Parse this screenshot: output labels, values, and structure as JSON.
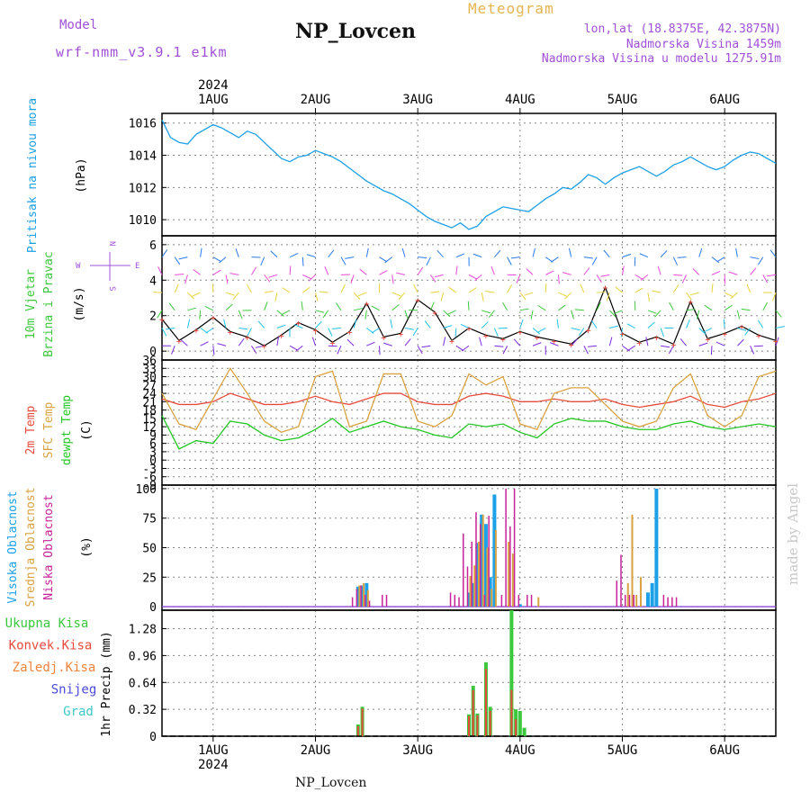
{
  "header": {
    "model_label": "Model",
    "model_name": "wrf-nmm_v3.9.1 e1km",
    "station": "NP_Lovcen",
    "product": "Meteogram",
    "lonlat": "lon,lat (18.8375E, 42.3875N)",
    "elev": "Nadmorska Visina 1459m",
    "elev_model": "Nadmorska Visina u modelu 1275.91m",
    "watermark": "made by Angel",
    "footer_station": "NP_Lovcen"
  },
  "time_axis": {
    "year": "2024",
    "start": "2024-07-31T12:00",
    "end": "2024-08-06T12:00",
    "day_labels": [
      "1AUG",
      "2AUG",
      "3AUG",
      "4AUG",
      "5AUG",
      "6AUG"
    ]
  },
  "colors": {
    "pressure": "#1ca0e8",
    "temp_2m": "#e84a3c",
    "temp_sfc": "#d9a240",
    "dewpoint": "#22c722",
    "cloud_high": "#1ca0e8",
    "cloud_mid": "#d9a240",
    "cloud_low": "#c8239a",
    "precip_total": "#3cc83c",
    "precip_conv": "#e84a3c",
    "precip_frozen": "#f0843c",
    "snow": "#4a4adc",
    "graupel": "#3cc8c8",
    "model_label": "#a050d8",
    "meteogram_label": "#e6b450"
  },
  "chart_data": [
    {
      "type": "line",
      "panel": "pressure",
      "ylabel_name": "Pritisak na nivou mora",
      "ylabel_unit": "(hPa)",
      "ylim": [
        1009,
        1016.6
      ],
      "yticks": [
        1010,
        1012,
        1014,
        1016
      ],
      "grid": true,
      "series": [
        {
          "name": "Pritisak na nivou mora",
          "x_hours": [
            0,
            2,
            4,
            6,
            8,
            10,
            12,
            14,
            16,
            18,
            20,
            22,
            24,
            26,
            28,
            30,
            32,
            34,
            36,
            38,
            40,
            42,
            44,
            46,
            48,
            50,
            52,
            54,
            56,
            58,
            60,
            62,
            64,
            66,
            68,
            70,
            72,
            74,
            76,
            78,
            80,
            82,
            84,
            86,
            88,
            90,
            92,
            94,
            96,
            98,
            100,
            102,
            104,
            106,
            108,
            110,
            112,
            114,
            116,
            118,
            120,
            122,
            124,
            126,
            128,
            130,
            132,
            134,
            136,
            138,
            140,
            142,
            144
          ],
          "values": [
            1016.2,
            1015.1,
            1014.8,
            1014.7,
            1015.3,
            1015.6,
            1015.9,
            1015.7,
            1015.4,
            1015.1,
            1015.5,
            1015.3,
            1014.8,
            1014.3,
            1013.8,
            1013.6,
            1013.9,
            1014.0,
            1014.3,
            1014.1,
            1013.9,
            1013.6,
            1013.2,
            1012.8,
            1012.4,
            1012.1,
            1011.8,
            1011.6,
            1011.3,
            1011.0,
            1010.6,
            1010.2,
            1009.9,
            1009.7,
            1009.5,
            1009.8,
            1009.4,
            1009.6,
            1010.2,
            1010.5,
            1010.8,
            1010.7,
            1010.6,
            1010.5,
            1010.9,
            1011.3,
            1011.6,
            1012.0,
            1011.9,
            1012.3,
            1012.8,
            1012.6,
            1012.2,
            1012.6,
            1012.9,
            1013.1,
            1013.3,
            1013.0,
            1012.7,
            1013.0,
            1013.4,
            1013.6,
            1013.9,
            1013.6,
            1013.3,
            1013.1,
            1013.3,
            1013.7,
            1014.0,
            1014.2,
            1014.1,
            1013.8,
            1013.5
          ]
        }
      ]
    },
    {
      "type": "barbs",
      "panel": "wind",
      "ylabel_name": "10m Vjetar",
      "ylabel_name2": "Brzina i Pravac",
      "ylabel_unit": "(m/s)",
      "compass": {
        "n": "N",
        "s": "S",
        "e": "E",
        "w": "W"
      },
      "ylim": [
        -0.5,
        6.5
      ],
      "yticks": [
        0,
        2,
        4,
        6
      ],
      "grid": true,
      "series": [
        {
          "name": "Brzina",
          "x_hours": [
            0,
            4,
            8,
            12,
            16,
            20,
            24,
            28,
            32,
            36,
            40,
            44,
            48,
            52,
            56,
            60,
            64,
            68,
            72,
            76,
            80,
            84,
            88,
            92,
            96,
            100,
            104,
            108,
            112,
            116,
            120,
            124,
            128,
            132,
            136,
            140,
            144
          ],
          "values": [
            1.8,
            0.6,
            1.2,
            1.9,
            1.1,
            0.8,
            0.3,
            0.9,
            1.6,
            1.2,
            0.5,
            1.1,
            2.7,
            0.8,
            1.0,
            2.9,
            2.2,
            0.6,
            1.3,
            0.9,
            0.7,
            1.1,
            0.8,
            0.6,
            0.4,
            1.2,
            3.6,
            1.0,
            0.5,
            0.8,
            0.4,
            2.8,
            0.7,
            1.0,
            1.4,
            0.9,
            0.6
          ]
        }
      ]
    },
    {
      "type": "line",
      "panel": "temperature",
      "ylabel_name": "2m Temp",
      "ylabel_name2": "SFC Temp",
      "ylabel_name3": "dewpt Temp",
      "ylabel_unit": "(C)",
      "ylim": [
        -9,
        36
      ],
      "yticks": [
        -9,
        -6,
        -3,
        0,
        3,
        6,
        9,
        12,
        15,
        18,
        21,
        24,
        27,
        30,
        33,
        36
      ],
      "grid": true,
      "series": [
        {
          "name": "2m Temp",
          "x_hours": [
            0,
            4,
            8,
            12,
            16,
            20,
            24,
            28,
            32,
            36,
            40,
            44,
            48,
            52,
            56,
            60,
            64,
            68,
            72,
            76,
            80,
            84,
            88,
            92,
            96,
            100,
            104,
            108,
            112,
            116,
            120,
            124,
            128,
            132,
            136,
            140,
            144
          ],
          "values": [
            22,
            20,
            20,
            21,
            24,
            22,
            20,
            20,
            21,
            23,
            21,
            20,
            22,
            24,
            24,
            21,
            20,
            20,
            23,
            24,
            23,
            21,
            21,
            22,
            21,
            21,
            22,
            20,
            19,
            20,
            21,
            23,
            20,
            19,
            21,
            22,
            24
          ]
        },
        {
          "name": "SFC Temp",
          "x_hours": [
            0,
            4,
            8,
            12,
            16,
            20,
            24,
            28,
            32,
            36,
            40,
            44,
            48,
            52,
            56,
            60,
            64,
            68,
            72,
            76,
            80,
            84,
            88,
            92,
            96,
            100,
            104,
            108,
            112,
            116,
            120,
            124,
            128,
            132,
            136,
            140,
            144
          ],
          "values": [
            24,
            13,
            11,
            22,
            33,
            24,
            14,
            10,
            12,
            30,
            32,
            12,
            14,
            31,
            31,
            14,
            12,
            16,
            31,
            27,
            30,
            13,
            11,
            24,
            26,
            26,
            20,
            14,
            12,
            14,
            26,
            31,
            16,
            12,
            16,
            30,
            32
          ]
        },
        {
          "name": "dewpt Temp",
          "x_hours": [
            0,
            4,
            8,
            12,
            16,
            20,
            24,
            28,
            32,
            36,
            40,
            44,
            48,
            52,
            56,
            60,
            64,
            68,
            72,
            76,
            80,
            84,
            88,
            92,
            96,
            100,
            104,
            108,
            112,
            116,
            120,
            124,
            128,
            132,
            136,
            140,
            144
          ],
          "values": [
            16,
            4,
            7,
            6,
            14,
            13,
            9,
            7,
            8,
            11,
            15,
            10,
            12,
            14,
            12,
            11,
            9,
            8,
            13,
            12,
            13,
            10,
            8,
            13,
            15,
            14,
            14,
            12,
            11,
            11,
            13,
            14,
            12,
            11,
            12,
            13,
            12
          ]
        }
      ]
    },
    {
      "type": "bar",
      "panel": "clouds",
      "ylabel_name": "Visoka Oblacnost",
      "ylabel_name2": "Srednja Oblacnost",
      "ylabel_name3": "Niska Oblacnost",
      "ylabel_unit": "(%)",
      "ylim": [
        -3,
        103
      ],
      "yticks": [
        0,
        25,
        50,
        75,
        100
      ],
      "grid": true,
      "series": [
        {
          "name": "Visoka Oblacnost",
          "x_hours": [
            46,
            47,
            48,
            72,
            73,
            74,
            75,
            76,
            77,
            78,
            84,
            114,
            115,
            116
          ],
          "values": [
            17,
            18,
            20,
            12,
            20,
            54,
            78,
            70,
            25,
            95,
            2,
            12,
            20,
            100
          ]
        },
        {
          "name": "Srednja Oblacnost",
          "x_hours": [
            46,
            47,
            48,
            72,
            73,
            74,
            75,
            76,
            77,
            78,
            81,
            82,
            88,
            109,
            110,
            111,
            112
          ],
          "values": [
            18,
            20,
            14,
            26,
            35,
            55,
            78,
            50,
            15,
            65,
            55,
            45,
            8,
            20,
            78,
            10,
            25
          ]
        },
        {
          "name": "Niska Oblacnost",
          "x_hours": [
            45,
            46,
            47,
            48,
            49,
            52,
            53,
            68,
            69,
            70,
            71,
            72,
            73,
            74,
            75,
            76,
            77,
            80,
            81,
            82,
            83,
            84,
            86,
            87,
            107,
            108,
            109,
            110,
            111,
            118,
            119,
            120,
            121
          ],
          "values": [
            8,
            15,
            18,
            10,
            5,
            10,
            10,
            12,
            10,
            8,
            62,
            34,
            55,
            80,
            70,
            10,
            77,
            10,
            100,
            68,
            100,
            10,
            10,
            10,
            22,
            44,
            10,
            10,
            10,
            10,
            8,
            8,
            8
          ]
        }
      ]
    },
    {
      "type": "bar",
      "panel": "precipitation",
      "ylabel_name": "1hr Precip",
      "ylabel_unit": "(mm)",
      "legend": [
        "Ukupna Kisa",
        "Konvek.Kisa",
        "Zaledj.Kisa",
        "Snijeg",
        "Grad"
      ],
      "ylim": [
        0,
        1.5
      ],
      "yticks": [
        0,
        0.32,
        0.64,
        0.96,
        1.28
      ],
      "grid": true,
      "series": [
        {
          "name": "Ukupna Kisa",
          "x_hours": [
            46,
            47,
            72,
            73,
            74,
            76,
            77,
            82,
            83,
            84,
            85
          ],
          "values": [
            0.14,
            0.35,
            0.26,
            0.6,
            0.27,
            0.88,
            0.35,
            1.5,
            0.32,
            0.3,
            0.1
          ]
        },
        {
          "name": "Konvek.Kisa",
          "x_hours": [
            46,
            47,
            72,
            73,
            74,
            76,
            77,
            82,
            83
          ],
          "values": [
            0.12,
            0.33,
            0.24,
            0.55,
            0.25,
            0.8,
            0.3,
            0.55,
            0.2
          ]
        }
      ]
    }
  ]
}
